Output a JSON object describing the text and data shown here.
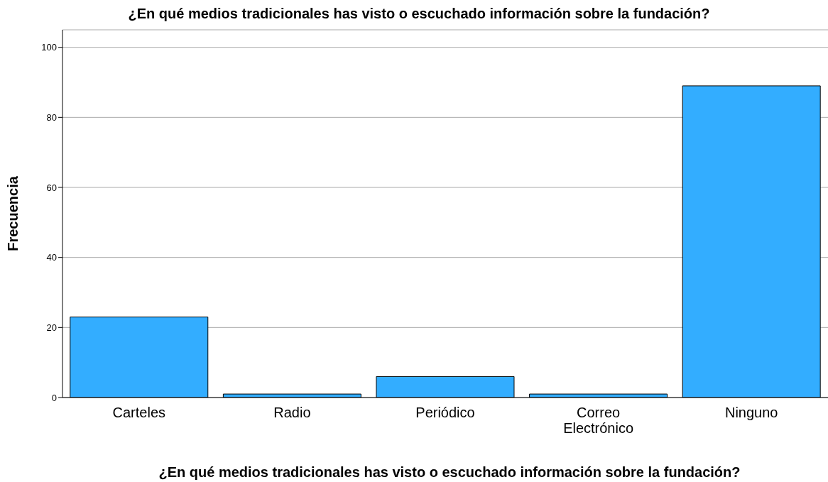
{
  "chart_data": {
    "type": "bar",
    "title": "¿En qué medios tradicionales has visto o escuchado información sobre la fundación?",
    "xlabel": "¿En qué medios tradicionales has visto o escuchado información sobre la fundación?",
    "ylabel": "Frecuencia",
    "categories": [
      "Carteles",
      "Radio",
      "Periódico",
      "Correo Electrónico",
      "Ninguno"
    ],
    "values": [
      23,
      1,
      6,
      1,
      89
    ],
    "color": "#33adff",
    "ylim": [
      0,
      105
    ],
    "yticks": [
      0,
      20,
      40,
      60,
      80,
      100
    ],
    "grid": "y"
  }
}
